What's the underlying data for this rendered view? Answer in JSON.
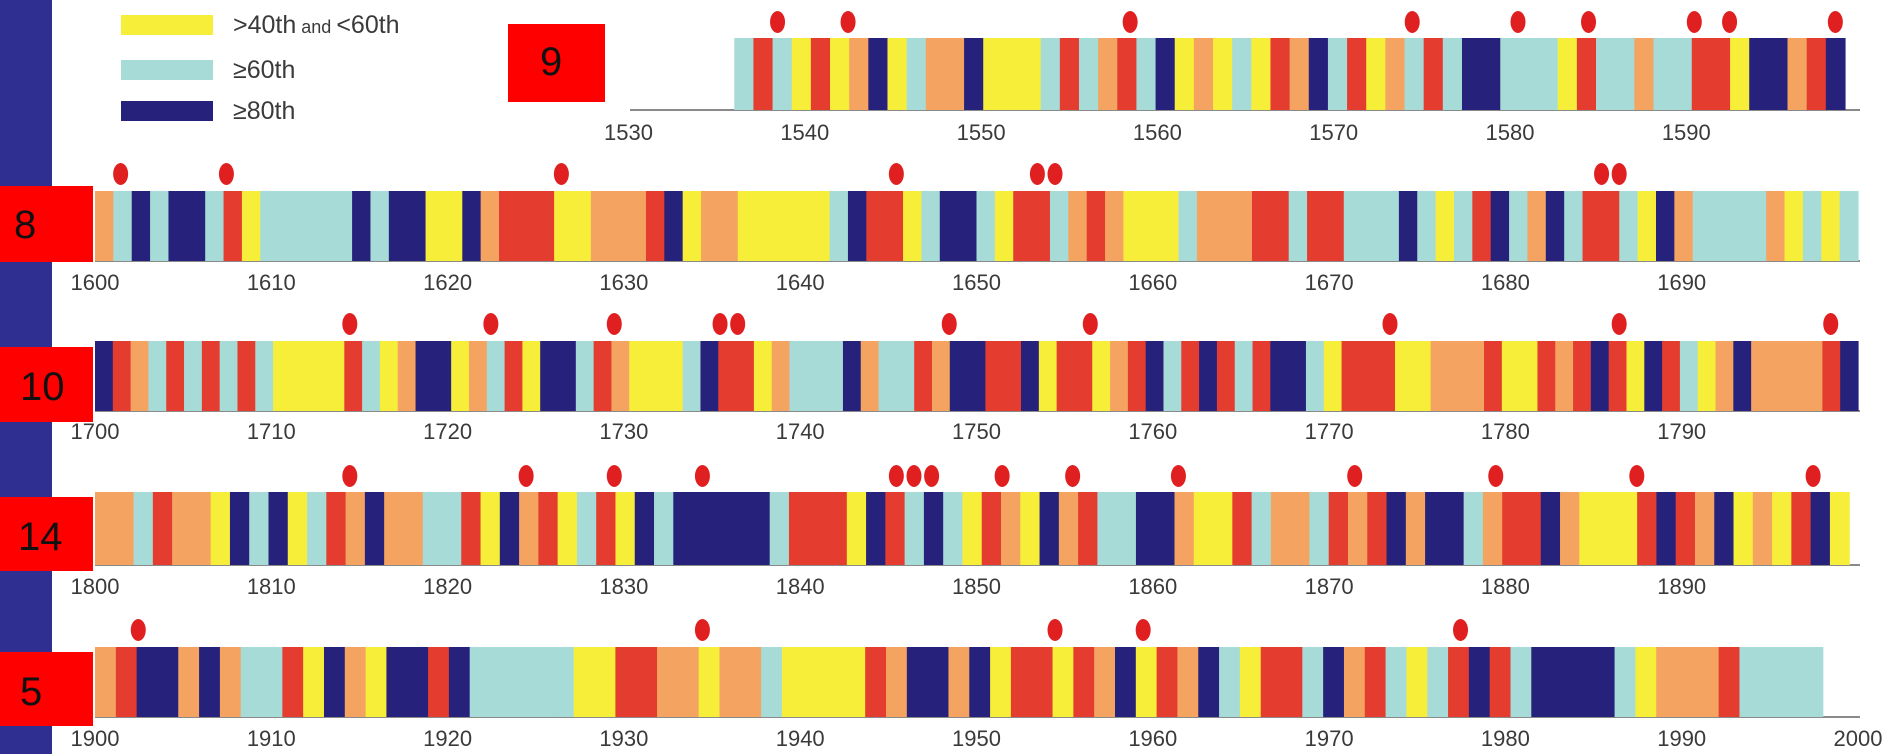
{
  "chart_data": {
    "type": "heatmap",
    "legend": [
      {
        "parts": [
          ">40th",
          " and ",
          "<60th"
        ],
        "color": "#f7ee3a"
      },
      {
        "parts": [
          "≥60th"
        ],
        "color": "#a7dbd8"
      },
      {
        "parts": [
          "≥80th"
        ],
        "color": "#26217a"
      }
    ],
    "colors": {
      "L": "#a7dbd8",
      "Y": "#f7ee3a",
      "O": "#f4a460",
      "R": "#e43d2f",
      "N": "#26217a"
    },
    "marker_color": "#e02020",
    "box_color": "#ff0000",
    "rows": [
      {
        "label": "9",
        "x_ticks": [
          "1530",
          "1540",
          "1550",
          "1560",
          "1570",
          "1580",
          "1590"
        ],
        "start_year": 1536,
        "end_year": 1599,
        "classes": "LRLYRYONYLOONYYYLRLORLNYOYLYRONLRYOLRLNNLLLYRLLOLLRRYNNORN",
        "markers": [
          1538,
          1542,
          1558,
          1574,
          1580,
          1584,
          1590,
          1592,
          1598
        ]
      },
      {
        "label": "8",
        "x_ticks": [
          "1600",
          "1610",
          "1620",
          "1630",
          "1640",
          "1650",
          "1660",
          "1670",
          "1680",
          "1690"
        ],
        "start_year": 1600,
        "end_year": 1700,
        "classes": "OLNLNNLRYLLLLLNLNNYYNORRRYYOOORNYOOYYYYYLNRRYLNNLYRRLOROYYYLOOORRLRRLLLNLYLRNLONLRRLYNOLLLLOYLYL",
        "markers": [
          1601,
          1607,
          1626,
          1645,
          1653,
          1654,
          1685,
          1686
        ]
      },
      {
        "label": "10",
        "x_ticks": [
          "1700",
          "1710",
          "1720",
          "1730",
          "1740",
          "1750",
          "1760",
          "1770",
          "1780",
          "1790"
        ],
        "start_year": 1700,
        "end_year": 1800,
        "classes": "NROLRLRLRLYYYYRLYONNYOLRYNNLROYYYLNRRYOLLLNOLLRONNRRNYRRYORNLRNRLRNNLYRRRYYOOORYYRORNRYNRLYONOOOORN",
        "markers": [
          1714,
          1722,
          1729,
          1735,
          1736,
          1748,
          1756,
          1773,
          1786,
          1798
        ]
      },
      {
        "label": "14",
        "x_ticks": [
          "1800",
          "1810",
          "1820",
          "1830",
          "1840",
          "1850",
          "1860",
          "1870",
          "1880",
          "1890"
        ],
        "start_year": 1800,
        "end_year": 1899.5,
        "classes": "OOLROOYNLNYLRONOOLLRYNORYLRYNLNNNNNLRRRYNRLNLYROYNORLLNNOYYRLOOLRORNONNLORRNOYYYRNRONYOYRNY",
        "markers": [
          1814,
          1824,
          1829,
          1834,
          1845,
          1846,
          1847,
          1851,
          1855,
          1861,
          1871,
          1879,
          1887,
          1897
        ]
      },
      {
        "label": "5",
        "x_ticks": [
          "1900",
          "1910",
          "1920",
          "1930",
          "1940",
          "1950",
          "1960",
          "1970",
          "1980",
          "1990",
          "2000"
        ],
        "start_year": 1900,
        "end_year": 1998,
        "classes": "ORNNONOLLRYNOYNNRNLLLLLYYRROOYOOLYYYYRONNONYRRYRONYRONLYRRLNORLYLRNRLNNNNLYOOORLLLL",
        "markers": [
          1902,
          1934,
          1954,
          1959,
          1977
        ]
      }
    ]
  },
  "labels": {
    "box_9": "9",
    "box_8": "8",
    "box_10": "10",
    "box_14": "14",
    "box_5": "5"
  }
}
